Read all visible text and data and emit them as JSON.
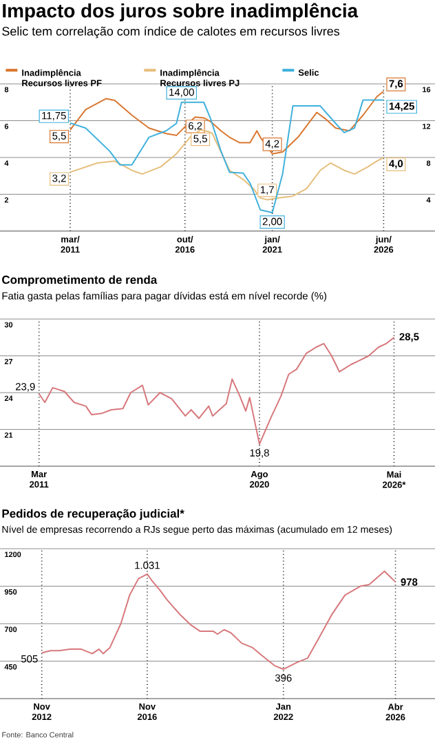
{
  "chart_data": [
    {
      "type": "line",
      "title": "Impacto dos juros sobre inadimplência",
      "subtitle": "Selic tem correlação com índice de calotes em recursos livres",
      "xlim": [
        "2007-10",
        "2028-12"
      ],
      "xticks": [
        {
          "value": "2011-03",
          "label": "mar/ 2011"
        },
        {
          "value": "2016-10",
          "label": "out/ 2016"
        },
        {
          "value": "2021-01",
          "label": "jan/ 2021"
        },
        {
          "value": "2026-06",
          "label": "jun/ 2026"
        }
      ],
      "ylim": [
        0,
        8
      ],
      "yticks": [
        2,
        4,
        6,
        8
      ],
      "y2lim": [
        0,
        16
      ],
      "y2ticks": [
        4,
        8,
        12,
        16
      ],
      "grid": true,
      "legend": "top",
      "series": [
        {
          "name": "Inadimplência Recursos livres PF",
          "color": "#d9772f",
          "x": [
            "2011-03",
            "2011-12",
            "2012-12",
            "2013-05",
            "2014-03",
            "2015-01",
            "2015-11",
            "2016-05",
            "2017-01",
            "2017-04",
            "2017-09",
            "2018-01",
            "2018-07",
            "2018-12",
            "2019-06",
            "2019-12",
            "2020-04",
            "2020-06",
            "2021-01",
            "2021-07",
            "2022-04",
            "2023-03",
            "2023-08",
            "2024-02",
            "2024-10",
            "2025-06",
            "2026-02",
            "2026-06"
          ],
          "values": [
            5.5,
            6.6,
            7.2,
            7.1,
            6.3,
            5.6,
            5.3,
            5.2,
            5.95,
            6.2,
            6.15,
            5.95,
            5.45,
            5.1,
            4.8,
            4.8,
            5.45,
            5.1,
            4.2,
            4.3,
            5.1,
            6.45,
            6.1,
            5.6,
            5.45,
            6.3,
            7.3,
            7.6
          ],
          "value_labels": [
            "5,5",
            null,
            null,
            null,
            null,
            null,
            null,
            null,
            null,
            "6,2",
            null,
            null,
            null,
            null,
            null,
            null,
            null,
            null,
            "4,2",
            null,
            null,
            null,
            null,
            null,
            null,
            null,
            null,
            "7,6"
          ]
        },
        {
          "name": "Inadimplência Recursos livres PJ",
          "color": "#e6be7c",
          "x": [
            "2011-03",
            "2012-07",
            "2013-05",
            "2014-03",
            "2014-09",
            "2015-08",
            "2016-05",
            "2017-01",
            "2017-07",
            "2017-12",
            "2018-02",
            "2018-07",
            "2018-12",
            "2019-08",
            "2020-02",
            "2020-06",
            "2020-10",
            "2021-05",
            "2022-01",
            "2022-09",
            "2023-05",
            "2023-11",
            "2024-07",
            "2025-01",
            "2025-09",
            "2026-02",
            "2026-06"
          ],
          "values": [
            3.2,
            3.7,
            3.8,
            3.3,
            3.1,
            3.5,
            4.2,
            5.1,
            5.5,
            5.4,
            5.3,
            4.3,
            3.3,
            2.8,
            2.3,
            1.8,
            1.7,
            1.8,
            1.9,
            2.3,
            3.3,
            3.7,
            3.3,
            3.1,
            3.5,
            3.8,
            4.0
          ],
          "value_labels": [
            "3,2",
            null,
            null,
            null,
            null,
            null,
            null,
            null,
            "5,5",
            null,
            null,
            null,
            null,
            null,
            null,
            null,
            "1,7",
            null,
            null,
            null,
            null,
            null,
            null,
            null,
            null,
            null,
            "4,0"
          ]
        },
        {
          "name": "Selic",
          "color": "#3fb1dc",
          "axis": "y2",
          "x": [
            "2011-03",
            "2011-12",
            "2013-02",
            "2013-08",
            "2014-03",
            "2015-01",
            "2015-11",
            "2016-05",
            "2016-08",
            "2017-09",
            "2018-01",
            "2018-07",
            "2018-12",
            "2019-08",
            "2019-12",
            "2020-06",
            "2021-01",
            "2021-07",
            "2022-01",
            "2023-05",
            "2024-02",
            "2024-07",
            "2025-01",
            "2025-06",
            "2026-06"
          ],
          "values": [
            11.75,
            11.2,
            8.7,
            7.2,
            7.2,
            10.2,
            10.9,
            11.7,
            14.0,
            14.0,
            12.2,
            8.7,
            6.4,
            6.3,
            5.2,
            2.3,
            2.0,
            6.2,
            13.6,
            13.6,
            11.7,
            10.7,
            11.2,
            14.25,
            14.25
          ],
          "value_labels": [
            "11,75",
            null,
            null,
            null,
            null,
            null,
            null,
            null,
            "14,00",
            null,
            null,
            null,
            null,
            null,
            null,
            null,
            "2,00",
            null,
            null,
            null,
            null,
            null,
            null,
            null,
            "14,25"
          ]
        }
      ]
    },
    {
      "type": "line",
      "title": "Comprometimento de renda",
      "subtitle": "Fatia gasta pelas famílias para pagar dívidas está em nível recorde (%)",
      "xlim": [
        "2009-07",
        "2028-02"
      ],
      "xticks": [
        {
          "value": "2011-03",
          "label": "Mar 2011"
        },
        {
          "value": "2020-08",
          "label": "Ago 2020"
        },
        {
          "value": "2026-05",
          "label": "Mai 2026*"
        }
      ],
      "ylim": [
        18,
        30
      ],
      "yticks": [
        21,
        24,
        27,
        30
      ],
      "grid": true,
      "series": [
        {
          "color": "#d7787c",
          "x": [
            "2011-03",
            "2011-06",
            "2011-10",
            "2012-04",
            "2012-09",
            "2013-03",
            "2013-06",
            "2013-11",
            "2014-04",
            "2014-10",
            "2015-02",
            "2015-08",
            "2015-11",
            "2016-05",
            "2016-11",
            "2017-06",
            "2017-09",
            "2018-01",
            "2018-06",
            "2018-08",
            "2019-03",
            "2019-06",
            "2019-10",
            "2020-01",
            "2020-03",
            "2020-08",
            "2021-02",
            "2021-07",
            "2021-11",
            "2022-03",
            "2022-08",
            "2023-01",
            "2023-05",
            "2023-09",
            "2024-01",
            "2024-07",
            "2024-11",
            "2025-04",
            "2025-09",
            "2026-01",
            "2026-05"
          ],
          "values": [
            23.9,
            23.2,
            24.4,
            24.1,
            23.2,
            22.9,
            22.2,
            22.3,
            22.6,
            22.7,
            24.0,
            24.6,
            23.0,
            24.0,
            23.5,
            22.1,
            22.6,
            21.9,
            22.9,
            22.1,
            23.1,
            25.1,
            23.7,
            22.5,
            23.6,
            19.8,
            22.0,
            23.7,
            25.5,
            25.9,
            27.2,
            27.7,
            28.0,
            27.0,
            25.7,
            26.3,
            26.6,
            27.0,
            27.7,
            28.0,
            28.5
          ],
          "value_labels": [
            "23,9",
            null,
            null,
            null,
            null,
            null,
            null,
            null,
            null,
            null,
            null,
            null,
            null,
            null,
            null,
            null,
            null,
            null,
            null,
            null,
            null,
            null,
            null,
            null,
            null,
            "19,8",
            null,
            null,
            null,
            null,
            null,
            null,
            null,
            null,
            null,
            null,
            null,
            null,
            null,
            null,
            "28,5"
          ]
        }
      ]
    },
    {
      "type": "line",
      "title": "Pedidos de recuperação judicial*",
      "subtitle": "Nível de empresas recorrendo a RJs segue perto das máximas (acumulado em 12 meses)",
      "annotations": [
        "Fonte: Banco Central"
      ],
      "xlim": [
        "2011-04",
        "2027-10"
      ],
      "xticks": [
        {
          "value": "2012-11",
          "label": "Nov 2012"
        },
        {
          "value": "2016-11",
          "label": "Nov 2016"
        },
        {
          "value": "2022-01",
          "label": "Jan 2022"
        },
        {
          "value": "2026-04",
          "label": "Abr 2026"
        }
      ],
      "ylim": [
        200,
        1200
      ],
      "yticks": [
        450,
        700,
        950,
        1200
      ],
      "grid": true,
      "series": [
        {
          "color": "#d7787c",
          "x": [
            "2012-11",
            "2013-03",
            "2013-07",
            "2013-12",
            "2014-05",
            "2014-10",
            "2015-01",
            "2015-03",
            "2015-06",
            "2015-11",
            "2016-03",
            "2016-07",
            "2016-11",
            "2017-01",
            "2017-05",
            "2017-08",
            "2018-02",
            "2018-07",
            "2018-11",
            "2019-05",
            "2019-07",
            "2019-10",
            "2020-01",
            "2020-06",
            "2020-11",
            "2021-03",
            "2021-09",
            "2022-01",
            "2022-07",
            "2022-12",
            "2023-05",
            "2023-11",
            "2024-05",
            "2024-12",
            "2025-04",
            "2025-11",
            "2026-04"
          ],
          "values": [
            505,
            520,
            520,
            530,
            530,
            500,
            530,
            500,
            540,
            700,
            890,
            1000,
            1031,
            990,
            920,
            860,
            760,
            690,
            650,
            650,
            630,
            660,
            640,
            570,
            540,
            490,
            420,
            396,
            440,
            470,
            600,
            760,
            890,
            950,
            960,
            1050,
            978
          ],
          "value_labels": [
            "505",
            null,
            null,
            null,
            null,
            null,
            null,
            null,
            null,
            null,
            null,
            null,
            "1.031",
            null,
            null,
            null,
            null,
            null,
            null,
            null,
            null,
            null,
            null,
            null,
            null,
            null,
            null,
            "396",
            null,
            null,
            null,
            null,
            null,
            null,
            null,
            null,
            "978"
          ]
        }
      ]
    }
  ]
}
